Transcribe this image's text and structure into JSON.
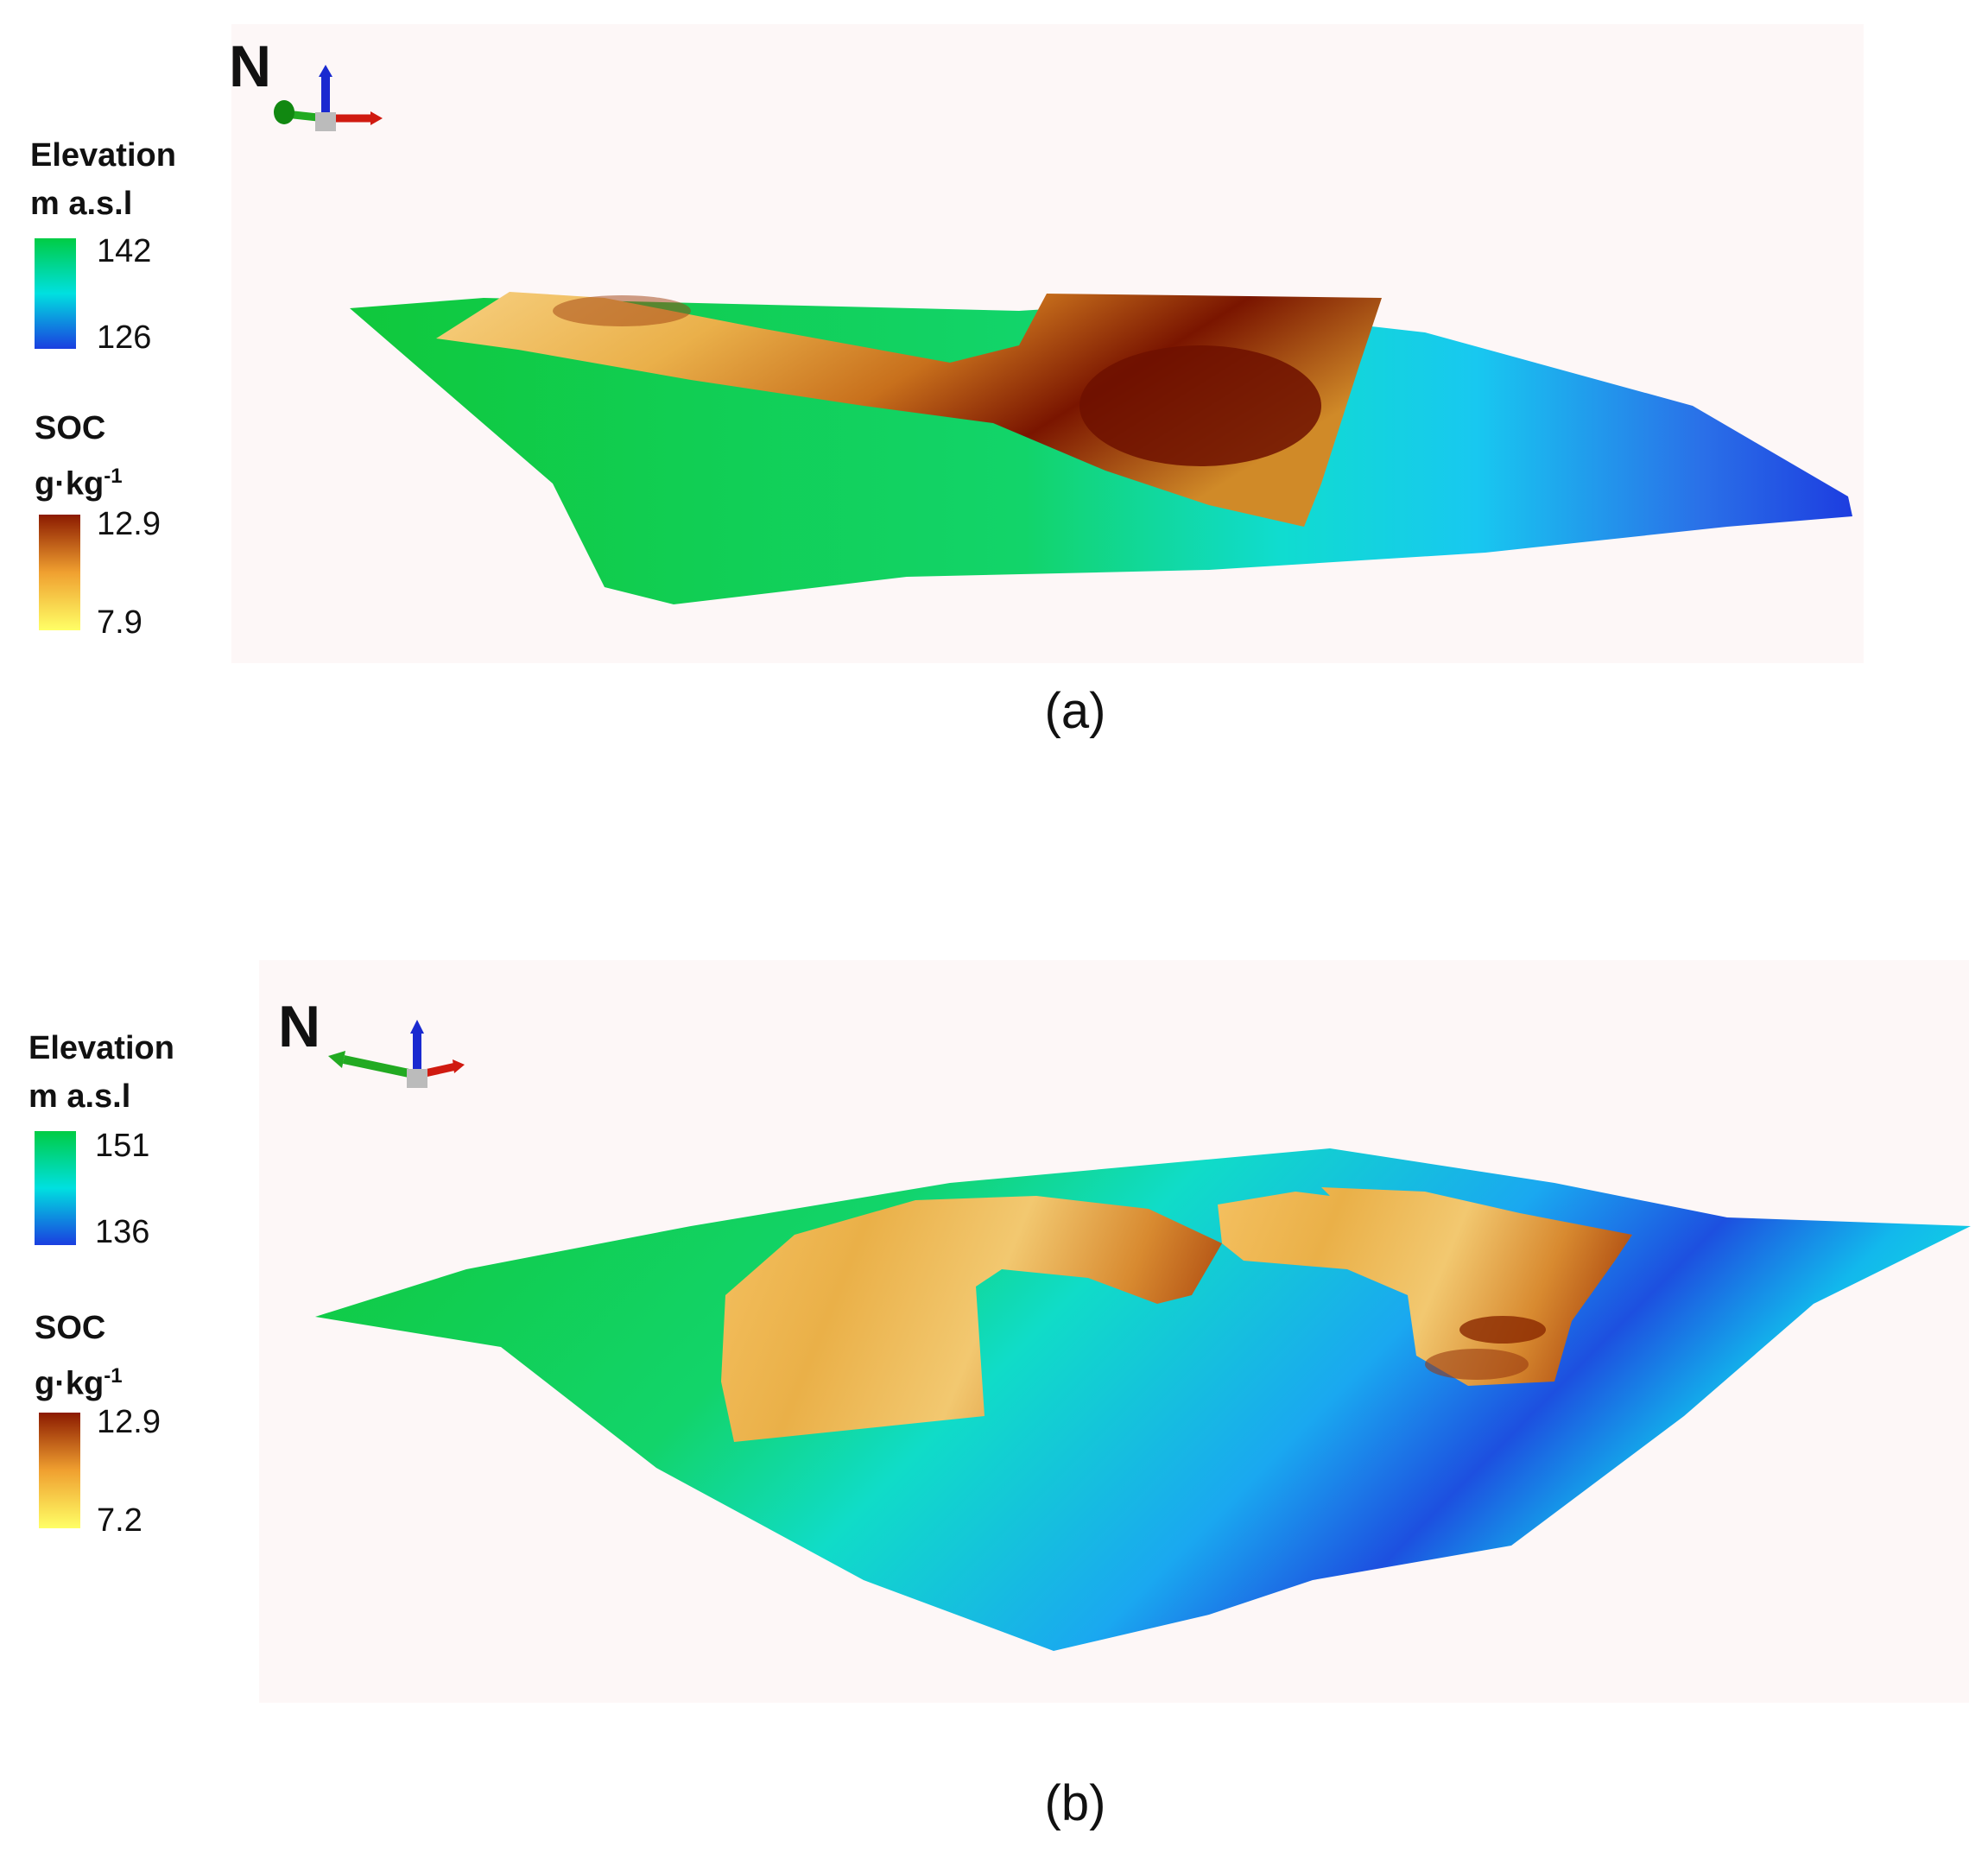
{
  "panels": [
    {
      "id": "a",
      "caption": "(a)",
      "north_label": "N",
      "elevation_legend": {
        "title_line1": "Elevation",
        "title_line2": "m a.s.l",
        "max": "142",
        "min": "126",
        "colors": [
          "#00cc44",
          "#00e0e0",
          "#1a3ee0"
        ]
      },
      "soc_legend": {
        "title_line1": "SOC",
        "title_line2": "g·kg",
        "title_sup": "-1",
        "max": "12.9",
        "min": "7.9",
        "colors": [
          "#8b1a00",
          "#f0a030",
          "#ffff66"
        ]
      }
    },
    {
      "id": "b",
      "caption": "(b)",
      "north_label": "N",
      "elevation_legend": {
        "title_line1": "Elevation",
        "title_line2": "m a.s.l",
        "max": "151",
        "min": "136",
        "colors": [
          "#00cc44",
          "#00e0e0",
          "#1a3ee0"
        ]
      },
      "soc_legend": {
        "title_line1": "SOC",
        "title_line2": "g·kg",
        "title_sup": "-1",
        "max": "12.9",
        "min": "7.2",
        "colors": [
          "#8b1a00",
          "#f0a030",
          "#ffff66"
        ]
      }
    }
  ]
}
